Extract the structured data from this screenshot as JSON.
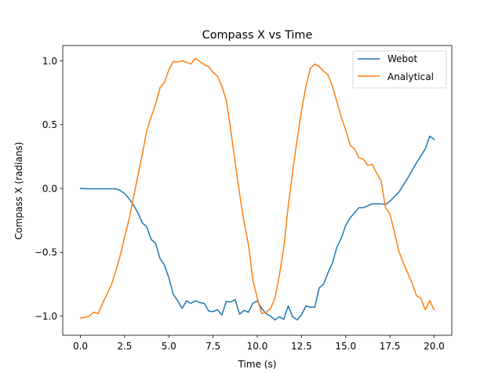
{
  "chart_data": {
    "type": "line",
    "title": "Compass X vs Time",
    "xlabel": "Time (s)",
    "ylabel": "Compass X (radians)",
    "xlim": [
      -1.0,
      21.0
    ],
    "ylim": [
      -1.15,
      1.12
    ],
    "xticks": [
      0.0,
      2.5,
      5.0,
      7.5,
      10.0,
      12.5,
      15.0,
      17.5,
      20.0
    ],
    "xtick_labels": [
      "0.0",
      "2.5",
      "5.0",
      "7.5",
      "10.0",
      "12.5",
      "15.0",
      "17.5",
      "20.0"
    ],
    "yticks": [
      -1.0,
      -0.5,
      0.0,
      0.5,
      1.0
    ],
    "ytick_labels": [
      "−1.0",
      "−0.5",
      "0.0",
      "0.5",
      "1.0"
    ],
    "grid": false,
    "legend_position": "upper right",
    "series": [
      {
        "name": "Webot",
        "color": "#1f77b4",
        "x": [
          0.0,
          0.5,
          1.0,
          1.5,
          2.0,
          2.25,
          2.5,
          2.75,
          3.0,
          3.25,
          3.5,
          3.75,
          4.0,
          4.25,
          4.5,
          4.75,
          5.0,
          5.25,
          5.5,
          5.75,
          6.0,
          6.25,
          6.5,
          6.75,
          7.0,
          7.25,
          7.5,
          7.75,
          8.0,
          8.25,
          8.5,
          8.75,
          9.0,
          9.25,
          9.5,
          9.75,
          10.0,
          10.25,
          10.5,
          10.75,
          11.0,
          11.25,
          11.5,
          11.75,
          12.0,
          12.25,
          12.5,
          12.75,
          13.0,
          13.25,
          13.5,
          13.75,
          14.0,
          14.25,
          14.5,
          14.75,
          15.0,
          15.25,
          15.5,
          15.75,
          16.0,
          16.25,
          16.5,
          16.75,
          17.0,
          17.25,
          17.5,
          17.75,
          18.0,
          18.5,
          19.0,
          19.5,
          19.75,
          20.0
        ],
        "values": [
          0.0,
          -0.003,
          -0.003,
          -0.003,
          -0.003,
          -0.015,
          -0.04,
          -0.08,
          -0.13,
          -0.19,
          -0.27,
          -0.3,
          -0.4,
          -0.43,
          -0.55,
          -0.6,
          -0.7,
          -0.83,
          -0.88,
          -0.94,
          -0.88,
          -0.9,
          -0.88,
          -0.895,
          -0.9,
          -0.96,
          -0.965,
          -0.95,
          -0.99,
          -0.885,
          -0.89,
          -0.87,
          -0.985,
          -0.955,
          -0.97,
          -0.9,
          -0.88,
          -0.94,
          -0.98,
          -1.0,
          -1.03,
          -1.005,
          -1.025,
          -0.92,
          -1.005,
          -1.03,
          -0.99,
          -0.92,
          -0.93,
          -0.93,
          -0.78,
          -0.75,
          -0.66,
          -0.585,
          -0.46,
          -0.39,
          -0.29,
          -0.23,
          -0.19,
          -0.15,
          -0.15,
          -0.135,
          -0.12,
          -0.12,
          -0.12,
          -0.125,
          -0.1,
          -0.065,
          -0.03,
          0.08,
          0.2,
          0.31,
          0.41,
          0.385
        ]
      },
      {
        "name": "Analytical",
        "color": "#ff7f0e",
        "x": [
          0.0,
          0.25,
          0.5,
          0.75,
          1.0,
          1.25,
          1.5,
          1.75,
          2.0,
          2.25,
          2.5,
          2.75,
          3.0,
          3.25,
          3.5,
          3.75,
          4.0,
          4.25,
          4.5,
          4.75,
          5.0,
          5.25,
          5.5,
          5.75,
          6.0,
          6.25,
          6.5,
          6.75,
          7.0,
          7.25,
          7.5,
          7.75,
          8.0,
          8.25,
          8.5,
          8.75,
          9.0,
          9.25,
          9.5,
          9.75,
          10.0,
          10.25,
          10.5,
          10.75,
          11.0,
          11.25,
          11.5,
          11.75,
          12.0,
          12.25,
          12.5,
          12.75,
          13.0,
          13.25,
          13.5,
          13.75,
          14.0,
          14.25,
          14.5,
          14.75,
          15.0,
          15.25,
          15.5,
          15.75,
          16.0,
          16.25,
          16.5,
          16.75,
          17.0,
          17.25,
          17.5,
          17.75,
          18.0,
          18.25,
          18.5,
          18.75,
          19.0,
          19.25,
          19.5,
          19.75,
          20.0
        ],
        "values": [
          -1.015,
          -1.01,
          -1.0,
          -0.97,
          -0.98,
          -0.9,
          -0.83,
          -0.755,
          -0.645,
          -0.525,
          -0.38,
          -0.24,
          -0.07,
          0.1,
          0.27,
          0.45,
          0.56,
          0.66,
          0.79,
          0.83,
          0.93,
          0.995,
          0.99,
          1.0,
          0.99,
          0.975,
          1.02,
          0.995,
          0.97,
          0.955,
          0.91,
          0.88,
          0.8,
          0.69,
          0.46,
          0.2,
          -0.04,
          -0.26,
          -0.44,
          -0.72,
          -0.86,
          -0.98,
          -0.97,
          -0.94,
          -0.86,
          -0.68,
          -0.46,
          -0.14,
          0.13,
          0.38,
          0.61,
          0.8,
          0.94,
          0.975,
          0.955,
          0.92,
          0.89,
          0.8,
          0.68,
          0.56,
          0.46,
          0.34,
          0.31,
          0.24,
          0.23,
          0.18,
          0.19,
          0.12,
          0.06,
          -0.15,
          -0.2,
          -0.34,
          -0.49,
          -0.58,
          -0.66,
          -0.74,
          -0.84,
          -0.86,
          -0.95,
          -0.88,
          -0.95
        ]
      }
    ]
  }
}
